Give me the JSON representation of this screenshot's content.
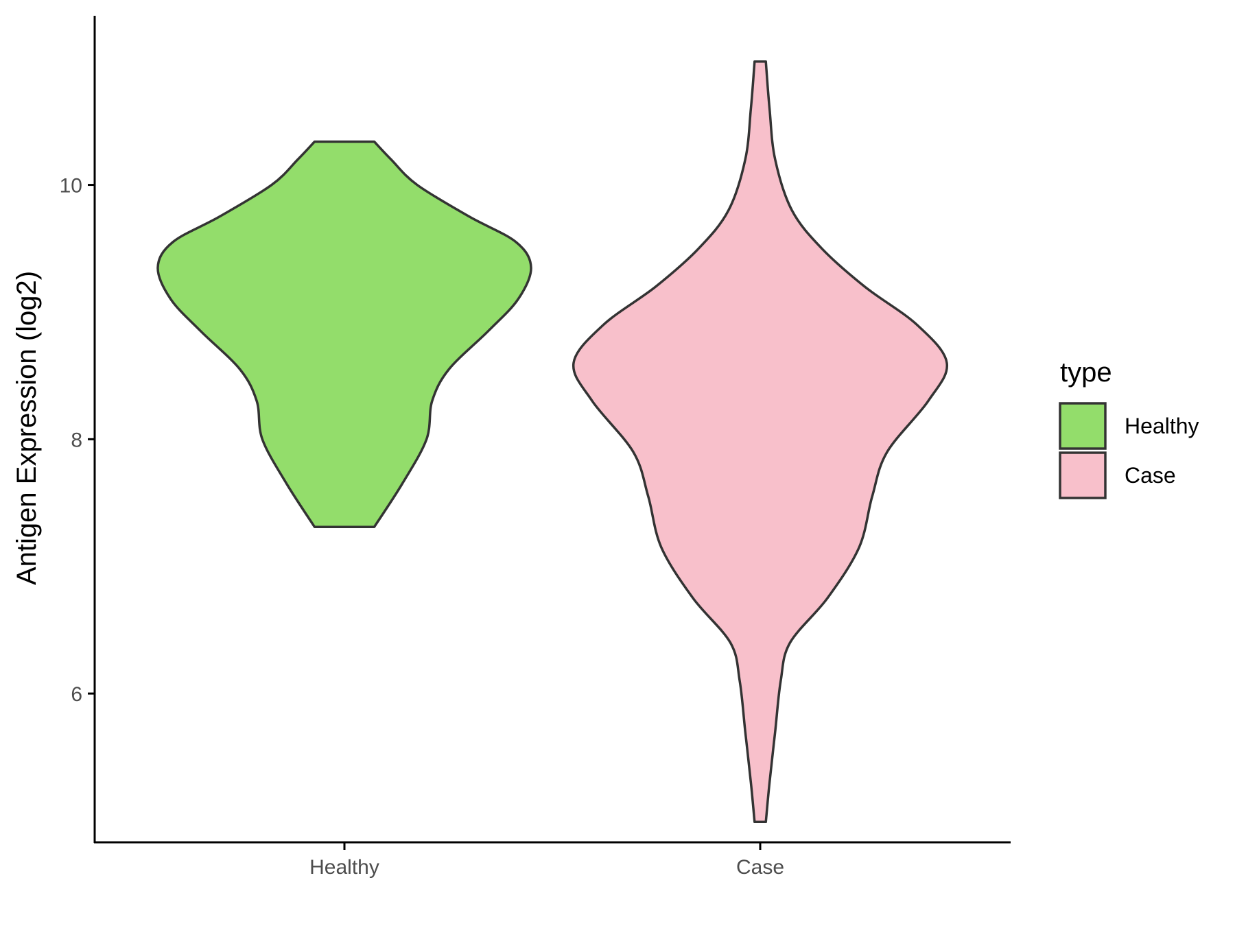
{
  "chart_data": {
    "type": "violin",
    "categories": [
      "Healthy",
      "Case"
    ],
    "ylabel": "Antigen Expression (log2)",
    "xlabel": "",
    "yticks": [
      6,
      8,
      10
    ],
    "ylim": [
      4.83,
      11.33
    ],
    "grid": false,
    "legend": {
      "title": "type",
      "position": "right",
      "entries": [
        "Healthy",
        "Case"
      ]
    },
    "series": [
      {
        "name": "Healthy",
        "color": "#93dd6b",
        "min": 7.31,
        "max": 10.34,
        "density": [
          [
            7.31,
            0.16
          ],
          [
            7.65,
            0.31
          ],
          [
            8.0,
            0.44
          ],
          [
            8.3,
            0.47
          ],
          [
            8.55,
            0.56
          ],
          [
            8.85,
            0.77
          ],
          [
            9.1,
            0.93
          ],
          [
            9.35,
            1.0
          ],
          [
            9.55,
            0.92
          ],
          [
            9.75,
            0.67
          ],
          [
            10.0,
            0.39
          ],
          [
            10.2,
            0.25
          ],
          [
            10.34,
            0.16
          ]
        ]
      },
      {
        "name": "Case",
        "color": "#f8c0cb",
        "min": 4.99,
        "max": 10.97,
        "density": [
          [
            4.99,
            0.03
          ],
          [
            5.3,
            0.05
          ],
          [
            5.7,
            0.08
          ],
          [
            6.1,
            0.11
          ],
          [
            6.4,
            0.16
          ],
          [
            6.75,
            0.36
          ],
          [
            7.15,
            0.53
          ],
          [
            7.55,
            0.6
          ],
          [
            7.9,
            0.68
          ],
          [
            8.3,
            0.9
          ],
          [
            8.6,
            1.0
          ],
          [
            8.9,
            0.84
          ],
          [
            9.2,
            0.56
          ],
          [
            9.5,
            0.33
          ],
          [
            9.8,
            0.17
          ],
          [
            10.2,
            0.08
          ],
          [
            10.6,
            0.05
          ],
          [
            10.97,
            0.03
          ]
        ]
      }
    ]
  }
}
